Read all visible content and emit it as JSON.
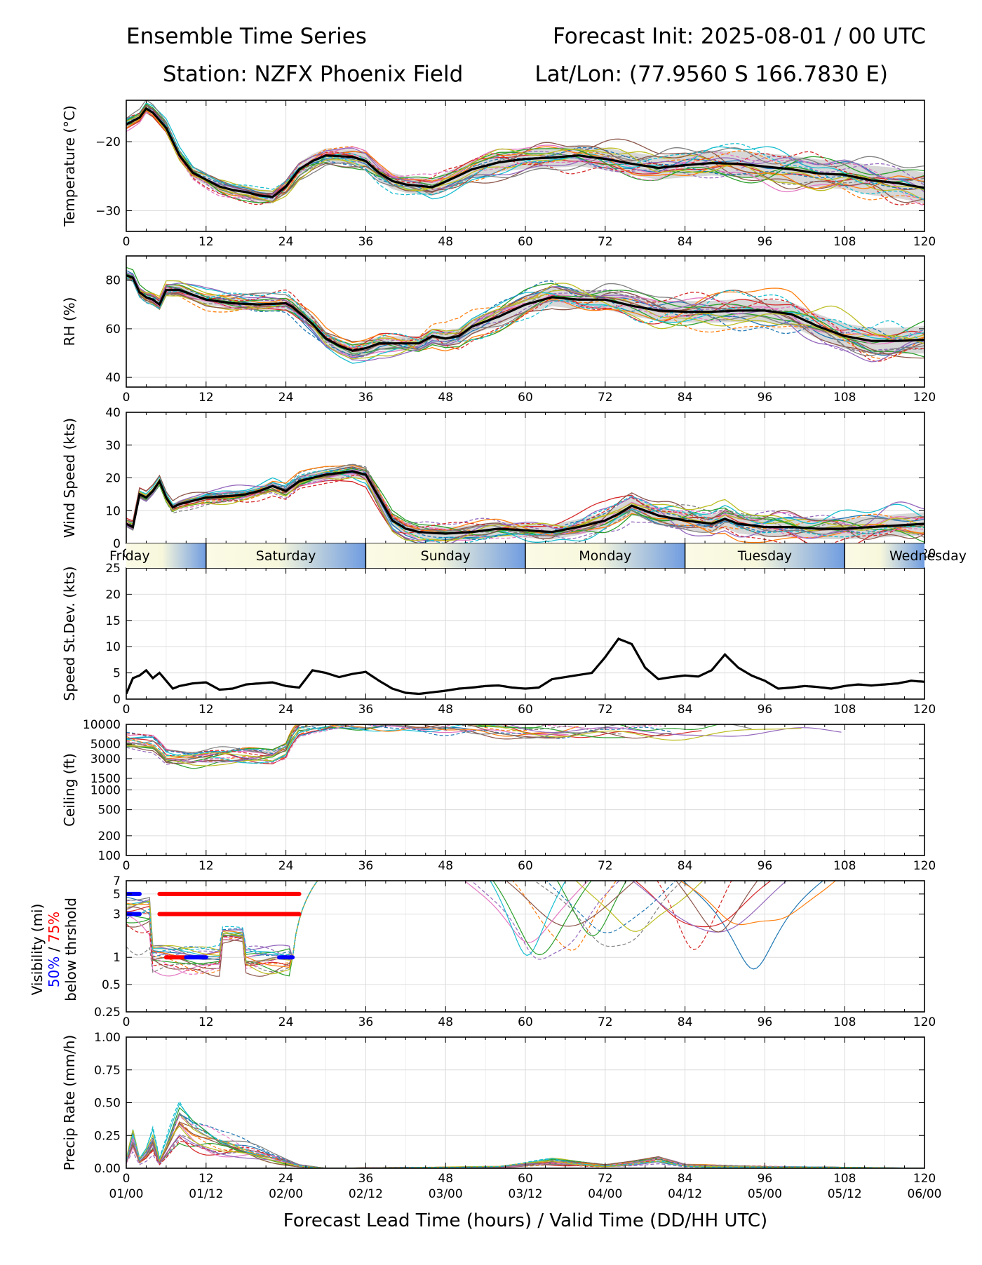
{
  "header": {
    "left1": "Ensemble Time Series",
    "right1": "Forecast Init: 2025-08-01 / 00 UTC",
    "left2": "Station: NZFX Phoenix Field",
    "right2": "Lat/Lon: (77.9560 S 166.7830 E)"
  },
  "xaxis": {
    "label": "Forecast Lead Time (hours) / Valid Time (DD/HH UTC)",
    "lead_ticks": [
      "0",
      "12",
      "24",
      "36",
      "48",
      "60",
      "72",
      "84",
      "96",
      "108",
      "120"
    ],
    "valid_ticks": [
      "01/00",
      "01/12",
      "02/00",
      "02/12",
      "03/00",
      "03/12",
      "04/00",
      "04/12",
      "05/00",
      "05/12",
      "06/00"
    ]
  },
  "day_band": {
    "labels": [
      "Friday",
      "Saturday",
      "Sunday",
      "Monday",
      "Tuesday",
      "Wednesday"
    ]
  },
  "member_colors": [
    "#1f77b4",
    "#ff7f0e",
    "#2ca02c",
    "#d62728",
    "#9467bd",
    "#8c564b",
    "#e377c2",
    "#7f7f7f",
    "#bcbd22",
    "#17becf"
  ],
  "visibility_ylabel": {
    "line1": "Visibility (mi)",
    "p50": "50%",
    "sep": " / ",
    "p75": "75%",
    "line3": "below thrshold"
  },
  "chart_data": [
    {
      "id": "temperature",
      "type": "line",
      "ylabel": "Temperature (°C)",
      "ylim": [
        -33,
        -14
      ],
      "yticks": [
        -20,
        -30
      ],
      "grid": true,
      "ensemble_members": 20,
      "series": [
        {
          "name": "",
          "values": [
            [
              0,
              -17.5
            ],
            [
              2,
              -16.5
            ],
            [
              3,
              -15.2
            ],
            [
              4,
              -15.8
            ],
            [
              6,
              -18
            ],
            [
              8,
              -22
            ],
            [
              10,
              -24.5
            ],
            [
              12,
              -25.5
            ],
            [
              14,
              -26.5
            ],
            [
              16,
              -27
            ],
            [
              18,
              -27.3
            ],
            [
              20,
              -27.8
            ],
            [
              22,
              -28
            ],
            [
              24,
              -26.5
            ],
            [
              26,
              -24
            ],
            [
              28,
              -22.8
            ],
            [
              30,
              -22
            ],
            [
              34,
              -22.2
            ],
            [
              36,
              -22.8
            ],
            [
              38,
              -24.5
            ],
            [
              40,
              -25.7
            ],
            [
              42,
              -26.2
            ],
            [
              44,
              -26.4
            ],
            [
              46,
              -26.6
            ],
            [
              48,
              -25.8
            ],
            [
              52,
              -24
            ],
            [
              56,
              -23
            ],
            [
              60,
              -22.5
            ],
            [
              64,
              -22.3
            ],
            [
              68,
              -22
            ],
            [
              72,
              -22.5
            ],
            [
              76,
              -23.2
            ],
            [
              80,
              -23.8
            ],
            [
              84,
              -23.4
            ],
            [
              88,
              -23.1
            ],
            [
              92,
              -23.2
            ],
            [
              96,
              -23.6
            ],
            [
              100,
              -24
            ],
            [
              104,
              -24.6
            ],
            [
              108,
              -24.8
            ],
            [
              112,
              -25.6
            ],
            [
              116,
              -26
            ],
            [
              120,
              -26.7
            ]
          ]
        }
      ]
    },
    {
      "id": "rh",
      "type": "line",
      "ylabel": "RH (%)",
      "ylim": [
        36,
        90
      ],
      "yticks": [
        40,
        60,
        80
      ],
      "grid": true,
      "series": [
        {
          "name": "",
          "values": [
            [
              0,
              82
            ],
            [
              1,
              81
            ],
            [
              2,
              75
            ],
            [
              3,
              73
            ],
            [
              4,
              72
            ],
            [
              5,
              70
            ],
            [
              6,
              76
            ],
            [
              8,
              76
            ],
            [
              10,
              74
            ],
            [
              12,
              72
            ],
            [
              16,
              70.5
            ],
            [
              20,
              70
            ],
            [
              24,
              70.5
            ],
            [
              25,
              69
            ],
            [
              28,
              62
            ],
            [
              30,
              56
            ],
            [
              32,
              53
            ],
            [
              34,
              51
            ],
            [
              36,
              52
            ],
            [
              38,
              54
            ],
            [
              40,
              54
            ],
            [
              44,
              54
            ],
            [
              46,
              57
            ],
            [
              48,
              56
            ],
            [
              50,
              57
            ],
            [
              52,
              61
            ],
            [
              56,
              65
            ],
            [
              60,
              70
            ],
            [
              64,
              73
            ],
            [
              68,
              72
            ],
            [
              72,
              72
            ],
            [
              76,
              69.5
            ],
            [
              80,
              67.5
            ],
            [
              84,
              67
            ],
            [
              88,
              67
            ],
            [
              92,
              67.5
            ],
            [
              96,
              67.5
            ],
            [
              100,
              66
            ],
            [
              104,
              61
            ],
            [
              108,
              57
            ],
            [
              112,
              55
            ],
            [
              116,
              55
            ],
            [
              120,
              55.5
            ]
          ]
        }
      ]
    },
    {
      "id": "windspeed",
      "type": "line",
      "ylabel": "Wind Speed (kts)",
      "ylim": [
        0,
        40
      ],
      "yticks": [
        0,
        10,
        20,
        30,
        40
      ],
      "grid": true,
      "series": [
        {
          "name": "",
          "values": [
            [
              0,
              6
            ],
            [
              1,
              5
            ],
            [
              2,
              15
            ],
            [
              3,
              14
            ],
            [
              4,
              16
            ],
            [
              5,
              19
            ],
            [
              6,
              14
            ],
            [
              7,
              11
            ],
            [
              8,
              12
            ],
            [
              10,
              13
            ],
            [
              12,
              14
            ],
            [
              16,
              14.5
            ],
            [
              18,
              15
            ],
            [
              20,
              16
            ],
            [
              22,
              17.5
            ],
            [
              24,
              16
            ],
            [
              26,
              19
            ],
            [
              28,
              20
            ],
            [
              30,
              21
            ],
            [
              32,
              21.5
            ],
            [
              34,
              22
            ],
            [
              36,
              21
            ],
            [
              38,
              14
            ],
            [
              40,
              7
            ],
            [
              42,
              4.5
            ],
            [
              44,
              3.5
            ],
            [
              46,
              3.2
            ],
            [
              48,
              3
            ],
            [
              52,
              3.5
            ],
            [
              56,
              4.5
            ],
            [
              60,
              4
            ],
            [
              64,
              3.5
            ],
            [
              68,
              5
            ],
            [
              72,
              7
            ],
            [
              74,
              9
            ],
            [
              76,
              11.5
            ],
            [
              78,
              10
            ],
            [
              80,
              8.5
            ],
            [
              84,
              7
            ],
            [
              88,
              6
            ],
            [
              90,
              7.5
            ],
            [
              92,
              6
            ],
            [
              96,
              5
            ],
            [
              100,
              5
            ],
            [
              104,
              4.5
            ],
            [
              108,
              4.5
            ],
            [
              112,
              5
            ],
            [
              116,
              5.5
            ],
            [
              120,
              6
            ]
          ]
        }
      ]
    },
    {
      "id": "speed_stdev",
      "type": "line",
      "ylabel": "Speed St.Dev. (kts)",
      "ylim": [
        0,
        25
      ],
      "yticks": [
        0,
        5,
        10,
        15,
        20,
        25
      ],
      "grid": true,
      "series": [
        {
          "name": "",
          "values": [
            [
              0,
              1
            ],
            [
              1,
              4
            ],
            [
              2,
              4.5
            ],
            [
              3,
              5.5
            ],
            [
              4,
              4
            ],
            [
              5,
              5
            ],
            [
              6,
              3.5
            ],
            [
              7,
              2
            ],
            [
              8,
              2.5
            ],
            [
              10,
              3
            ],
            [
              12,
              3.2
            ],
            [
              14,
              1.8
            ],
            [
              16,
              2
            ],
            [
              18,
              2.8
            ],
            [
              20,
              3
            ],
            [
              22,
              3.2
            ],
            [
              24,
              2.5
            ],
            [
              26,
              2.2
            ],
            [
              28,
              5.5
            ],
            [
              30,
              5
            ],
            [
              32,
              4.2
            ],
            [
              34,
              4.8
            ],
            [
              36,
              5.2
            ],
            [
              38,
              3.5
            ],
            [
              40,
              2
            ],
            [
              42,
              1.2
            ],
            [
              44,
              1
            ],
            [
              46,
              1.3
            ],
            [
              48,
              1.6
            ],
            [
              50,
              2
            ],
            [
              52,
              2.2
            ],
            [
              54,
              2.5
            ],
            [
              56,
              2.6
            ],
            [
              58,
              2.2
            ],
            [
              60,
              2
            ],
            [
              62,
              2.2
            ],
            [
              64,
              3.8
            ],
            [
              66,
              4.2
            ],
            [
              68,
              4.6
            ],
            [
              70,
              5
            ],
            [
              72,
              8
            ],
            [
              74,
              11.5
            ],
            [
              76,
              10.5
            ],
            [
              78,
              6
            ],
            [
              80,
              3.8
            ],
            [
              82,
              4.2
            ],
            [
              84,
              4.5
            ],
            [
              86,
              4.3
            ],
            [
              88,
              5.5
            ],
            [
              90,
              8.5
            ],
            [
              92,
              6
            ],
            [
              94,
              4.5
            ],
            [
              96,
              3.5
            ],
            [
              98,
              2
            ],
            [
              100,
              2.2
            ],
            [
              102,
              2.5
            ],
            [
              104,
              2.3
            ],
            [
              106,
              2
            ],
            [
              108,
              2.5
            ],
            [
              110,
              2.8
            ],
            [
              112,
              2.6
            ],
            [
              114,
              2.8
            ],
            [
              116,
              3
            ],
            [
              118,
              3.5
            ],
            [
              120,
              3.3
            ]
          ]
        }
      ]
    },
    {
      "id": "ceiling",
      "type": "line",
      "ylabel": "Ceiling (ft)",
      "yscale": "log",
      "ylim": [
        100,
        10000
      ],
      "yticks": [
        100,
        200,
        500,
        1000,
        1500,
        3000,
        5000,
        10000
      ],
      "grid": true
    },
    {
      "id": "visibility",
      "type": "line",
      "yscale": "log",
      "ylim": [
        0.25,
        7
      ],
      "yticks": [
        0.25,
        0.5,
        1,
        3,
        5,
        7
      ],
      "grid": true,
      "thresholds": [
        {
          "level": 5,
          "segments": [
            [
              0,
              2,
              "#0000ff"
            ],
            [
              5,
              26,
              "#ff0000"
            ]
          ]
        },
        {
          "level": 3,
          "segments": [
            [
              0,
              2,
              "#0000ff"
            ],
            [
              5,
              26,
              "#ff0000"
            ]
          ]
        },
        {
          "level": 1,
          "segments": [
            [
              6,
              9,
              "#ff0000"
            ],
            [
              9,
              12,
              "#0000ff"
            ],
            [
              23,
              25,
              "#0000ff"
            ]
          ]
        }
      ]
    },
    {
      "id": "precip",
      "type": "line",
      "ylabel": "Precip Rate (mm/h)",
      "ylim": [
        0,
        1
      ],
      "yticks": [
        0.0,
        0.25,
        0.5,
        0.75,
        1.0
      ],
      "grid": true
    }
  ]
}
